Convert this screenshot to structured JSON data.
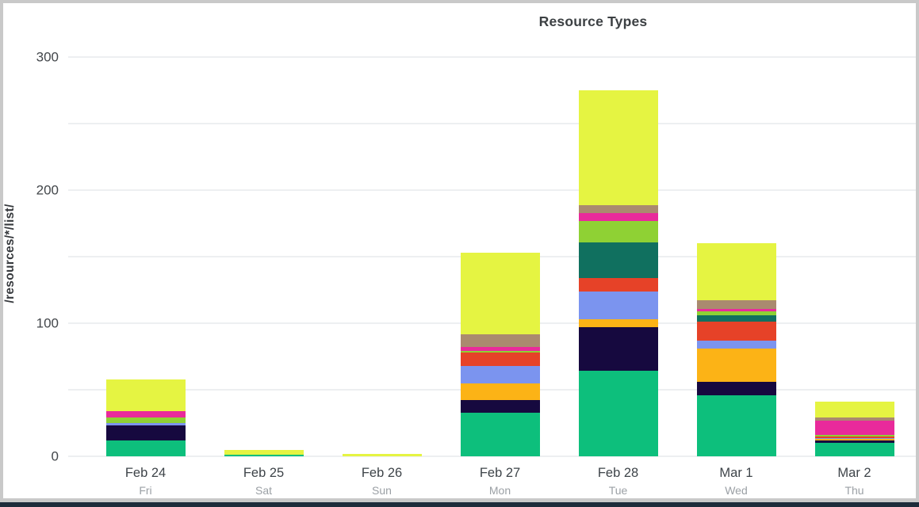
{
  "window": {
    "border_color": "#c9c9c9",
    "bottom_strip_color": "#1d2c3b",
    "background": "#ffffff"
  },
  "chart_data": {
    "type": "bar",
    "stacked": true,
    "title": "Resource Types",
    "ylabel": "/resources/*/list/",
    "legend": "none",
    "grid": true,
    "grid_step": 50,
    "ylim": [
      0,
      300
    ],
    "y_ticks": [
      0,
      100,
      200,
      300
    ],
    "categories": [
      {
        "date": "Feb 24",
        "weekday": "Fri"
      },
      {
        "date": "Feb 25",
        "weekday": "Sat"
      },
      {
        "date": "Feb 26",
        "weekday": "Sun"
      },
      {
        "date": "Feb 27",
        "weekday": "Mon"
      },
      {
        "date": "Feb 28",
        "weekday": "Tue"
      },
      {
        "date": "Mar 1",
        "weekday": "Wed"
      },
      {
        "date": "Mar 2",
        "weekday": "Thu"
      }
    ],
    "series": [
      {
        "name": "emerald",
        "color": "#0dbf7c",
        "values": [
          12,
          1,
          0,
          33,
          64,
          46,
          10
        ]
      },
      {
        "name": "navy",
        "color": "#16093f",
        "values": [
          11,
          0,
          0,
          9,
          33,
          10,
          2
        ]
      },
      {
        "name": "orange",
        "color": "#fcb316",
        "values": [
          0,
          0,
          0,
          13,
          6,
          25,
          1
        ]
      },
      {
        "name": "cornflower",
        "color": "#7b94ef",
        "values": [
          2,
          0,
          0,
          13,
          21,
          6,
          1
        ]
      },
      {
        "name": "red",
        "color": "#e64228",
        "values": [
          0,
          0,
          0,
          10,
          10,
          14,
          1
        ]
      },
      {
        "name": "teal",
        "color": "#10705f",
        "values": [
          0,
          0,
          0,
          0,
          27,
          5,
          0
        ]
      },
      {
        "name": "lime",
        "color": "#8fd134",
        "values": [
          4,
          0,
          0,
          1,
          16,
          3,
          1
        ]
      },
      {
        "name": "magenta",
        "color": "#e92a9b",
        "values": [
          5,
          0,
          0,
          3,
          6,
          2,
          11
        ]
      },
      {
        "name": "tan",
        "color": "#aa8a6f",
        "values": [
          0,
          0,
          0,
          10,
          6,
          6,
          2
        ]
      },
      {
        "name": "yellow",
        "color": "#e5f442",
        "values": [
          24,
          4,
          2,
          61,
          86,
          43,
          12
        ]
      }
    ],
    "totals": [
      58,
      5,
      2,
      153,
      275,
      160,
      41
    ]
  }
}
